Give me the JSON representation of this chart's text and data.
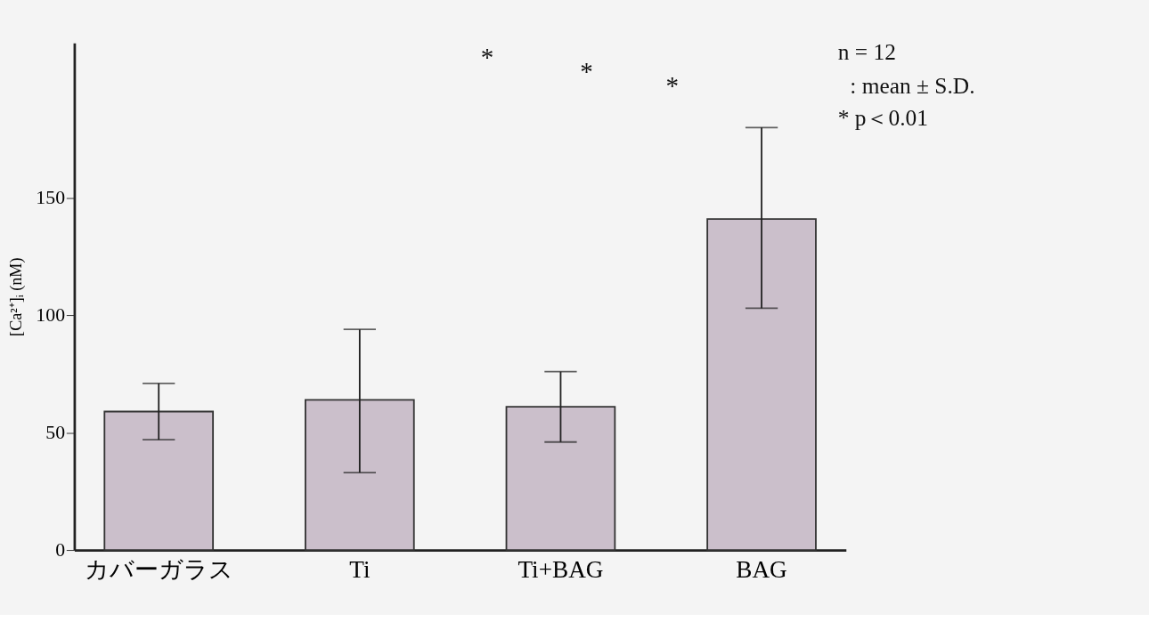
{
  "chart_data": {
    "type": "bar",
    "ylabel": "[Ca²⁺]ᵢ (nM)",
    "categories": [
      "カバーガラス",
      "Ti",
      "Ti+BAG",
      "BAG"
    ],
    "values": [
      59,
      64,
      61,
      141
    ],
    "errors": [
      [
        47,
        71
      ],
      [
        33,
        94
      ],
      [
        46,
        76
      ],
      [
        103,
        180
      ]
    ],
    "color": "#cbbfcb",
    "ylim": [
      0,
      216
    ],
    "yticks": [
      0,
      50,
      100,
      150
    ],
    "grid": false,
    "annotations": [
      "n = 12",
      ": mean ± S.D.",
      "*   p＜0.01",
      "*",
      "*",
      "*"
    ]
  }
}
